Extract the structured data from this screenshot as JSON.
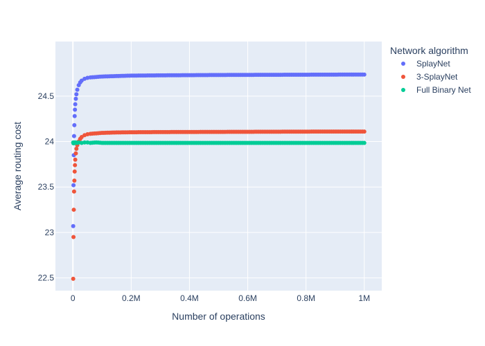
{
  "chart_data": {
    "type": "scatter",
    "title": "",
    "xlabel": "Number of operations",
    "ylabel": "Average routing cost",
    "xlim": [
      -60000,
      1060000
    ],
    "ylim": [
      22.36,
      25.1
    ],
    "x_ticks": [
      {
        "value": 0,
        "label": "0"
      },
      {
        "value": 200000,
        "label": "0.2M"
      },
      {
        "value": 400000,
        "label": "0.4M"
      },
      {
        "value": 600000,
        "label": "0.6M"
      },
      {
        "value": 800000,
        "label": "0.8M"
      },
      {
        "value": 1000000,
        "label": "1M"
      }
    ],
    "y_ticks": [
      {
        "value": 22.5,
        "label": "22.5"
      },
      {
        "value": 23,
        "label": "23"
      },
      {
        "value": 23.5,
        "label": "23.5"
      },
      {
        "value": 24,
        "label": "24"
      },
      {
        "value": 24.5,
        "label": "24.5"
      }
    ],
    "grid": true,
    "legend": {
      "title": "Network algorithm",
      "position": "top-right"
    },
    "series": [
      {
        "name": "SplayNet",
        "color": "#636efa",
        "x": [
          1000,
          2000,
          3000,
          4000,
          5000,
          6000,
          7000,
          8000,
          10000,
          12000,
          15000,
          20000,
          25000,
          30000,
          40000,
          50000,
          60000,
          80000,
          100000,
          150000,
          200000,
          300000,
          400000,
          500000,
          600000,
          700000,
          800000,
          900000,
          1000000
        ],
        "y": [
          23.07,
          23.52,
          23.85,
          24.06,
          24.18,
          24.28,
          24.35,
          24.41,
          24.47,
          24.52,
          24.57,
          24.62,
          24.65,
          24.67,
          24.69,
          24.7,
          24.705,
          24.71,
          24.715,
          24.72,
          24.725,
          24.728,
          24.73,
          24.732,
          24.733,
          24.734,
          24.735,
          24.736,
          24.737
        ]
      },
      {
        "name": "3-SplayNet",
        "color": "#ef553b",
        "x": [
          1000,
          2000,
          3000,
          4000,
          5000,
          6000,
          7000,
          8000,
          10000,
          12000,
          15000,
          20000,
          25000,
          30000,
          40000,
          50000,
          60000,
          80000,
          100000,
          150000,
          200000,
          300000,
          400000,
          500000,
          600000,
          700000,
          800000,
          900000,
          1000000
        ],
        "y": [
          22.49,
          22.95,
          23.25,
          23.45,
          23.57,
          23.67,
          23.74,
          23.8,
          23.87,
          23.92,
          23.96,
          24.0,
          24.03,
          24.05,
          24.07,
          24.08,
          24.085,
          24.09,
          24.095,
          24.1,
          24.102,
          24.104,
          24.105,
          24.106,
          24.107,
          24.108,
          24.109,
          24.11,
          24.11
        ]
      },
      {
        "name": "Full Binary Net",
        "color": "#00cc96",
        "x": [
          1000,
          2000,
          3000,
          4000,
          5000,
          6000,
          8000,
          10000,
          15000,
          20000,
          30000,
          40000,
          50000,
          60000,
          80000,
          100000,
          150000,
          200000,
          300000,
          400000,
          500000,
          600000,
          700000,
          800000,
          900000,
          1000000
        ],
        "y": [
          23.99,
          23.98,
          23.985,
          23.99,
          23.985,
          23.99,
          23.985,
          23.99,
          23.985,
          23.99,
          23.985,
          23.99,
          23.99,
          23.985,
          23.99,
          23.985,
          23.985,
          23.985,
          23.985,
          23.985,
          23.985,
          23.985,
          23.985,
          23.985,
          23.985,
          23.985
        ]
      }
    ]
  }
}
